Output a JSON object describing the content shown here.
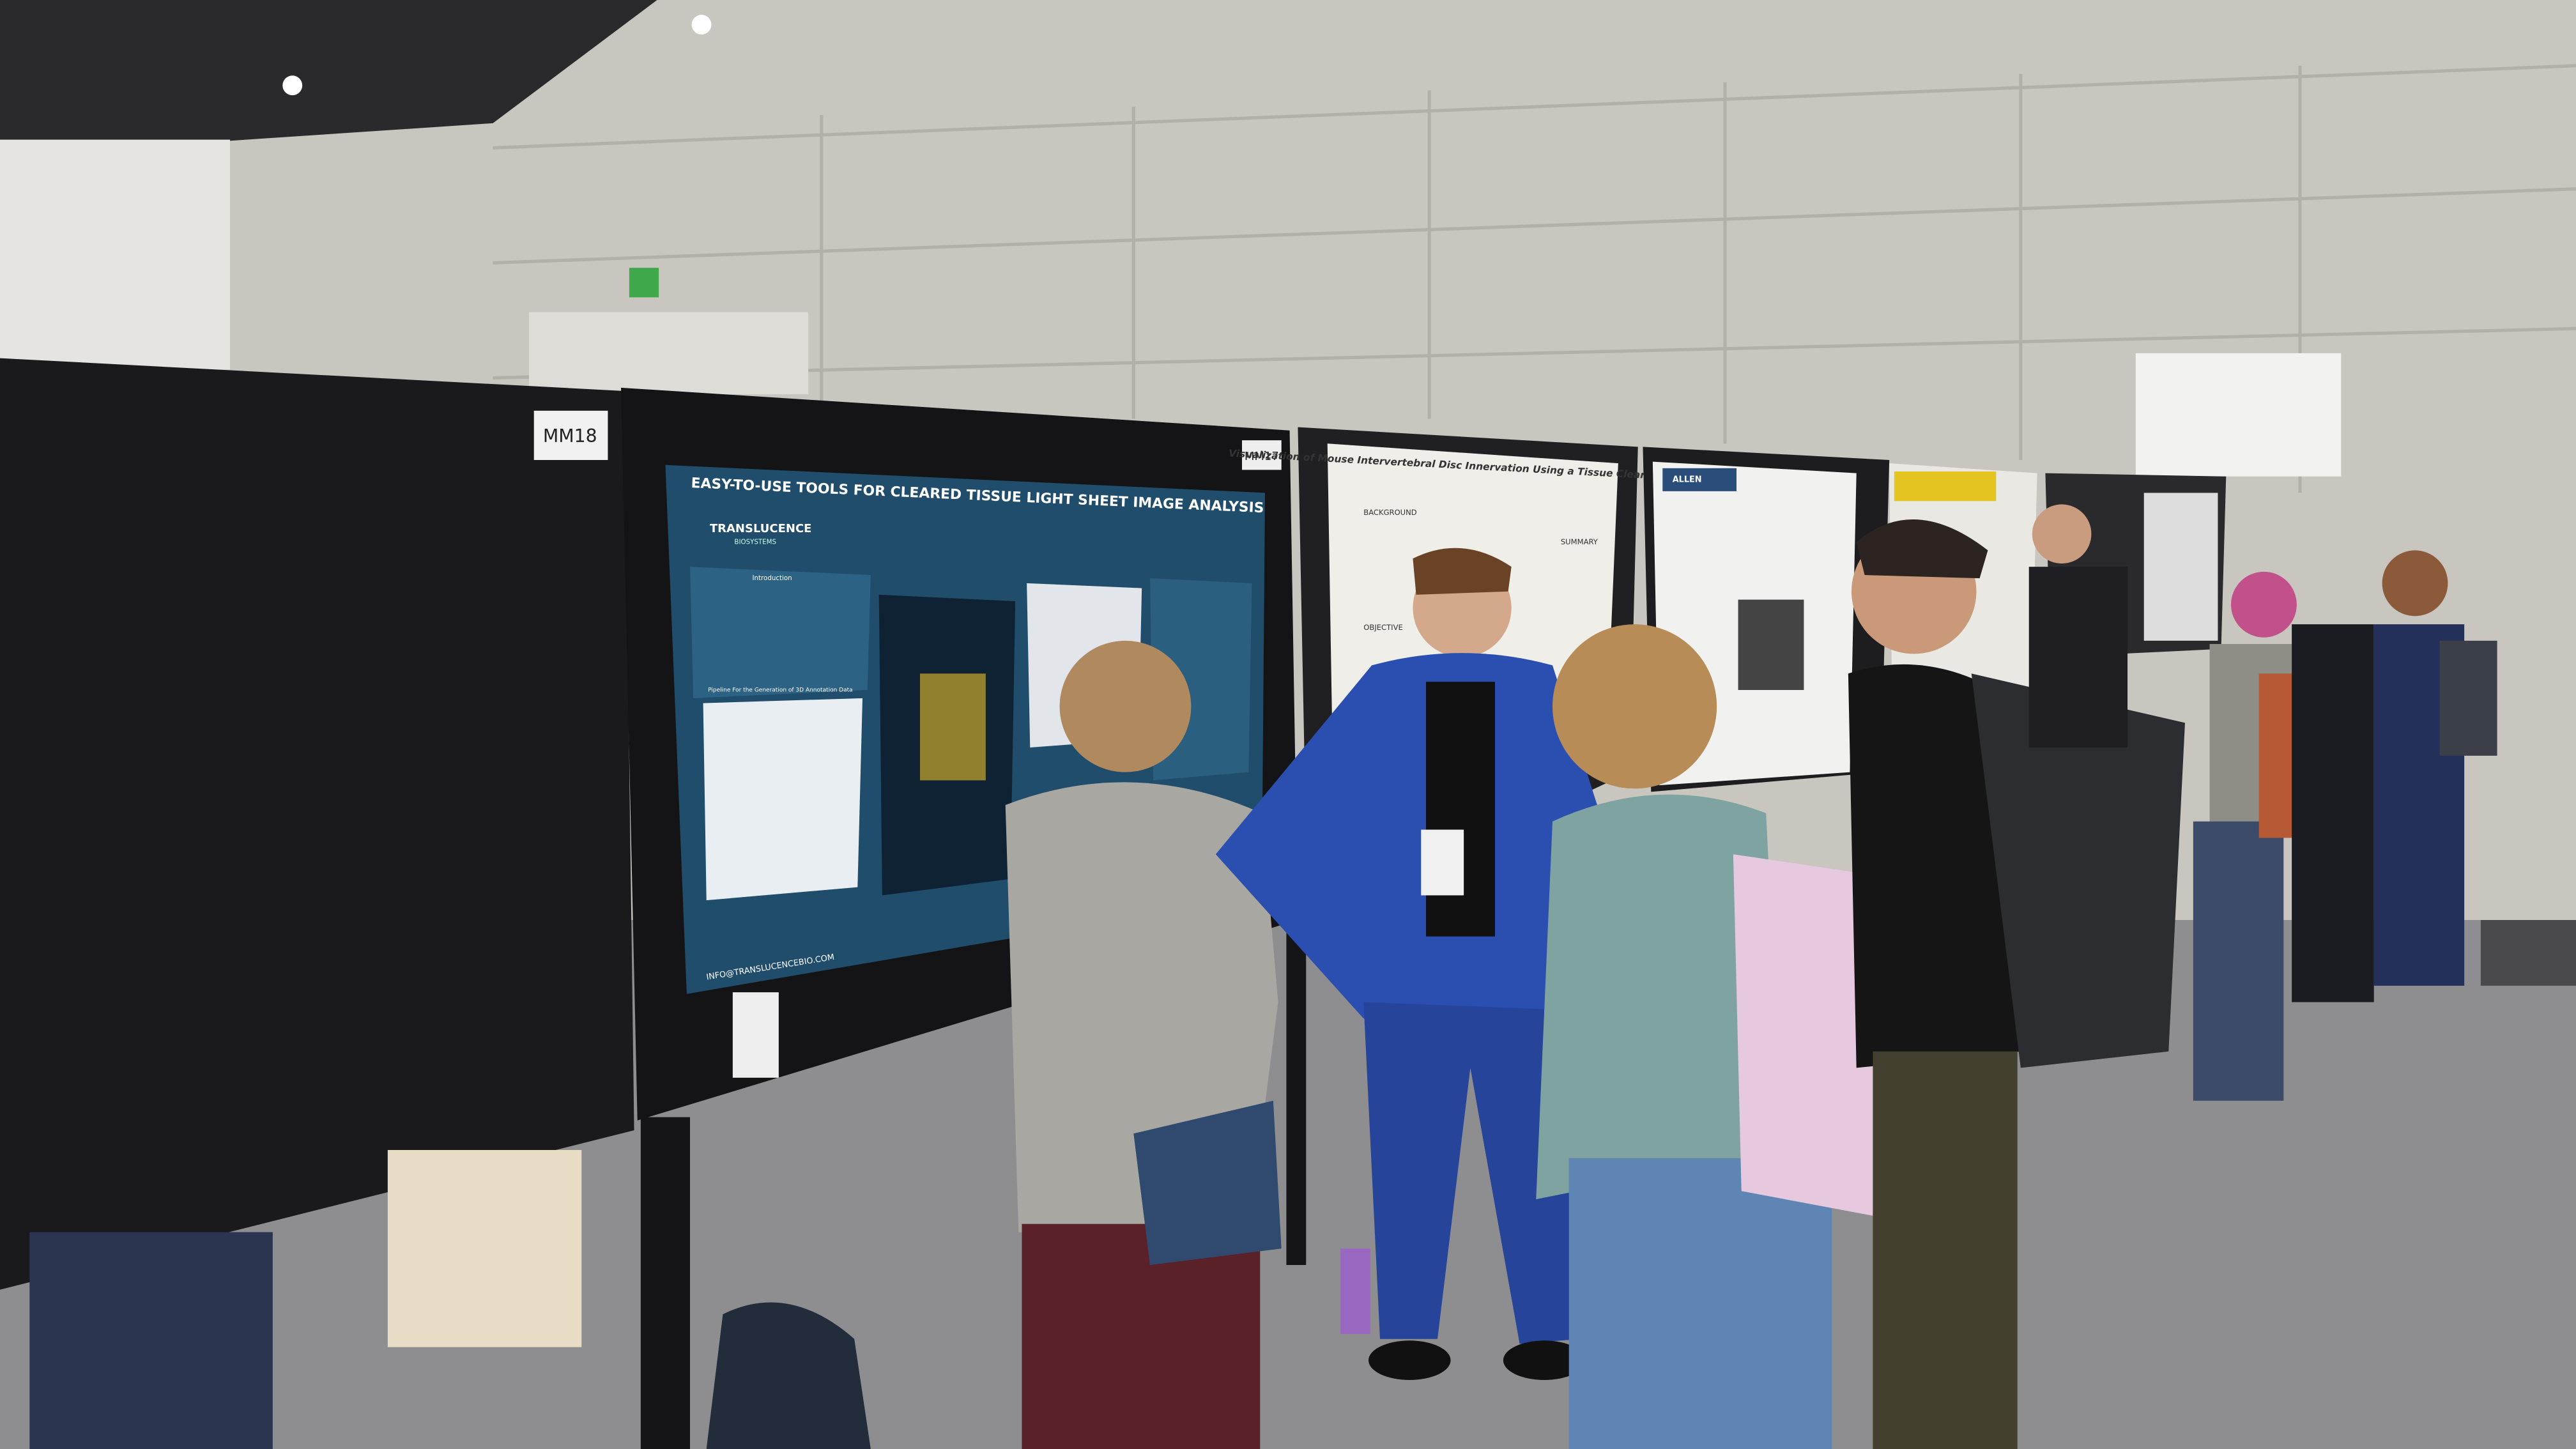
{
  "signs": {
    "board_left": "MM18",
    "board_right": "MM17"
  },
  "poster_left": {
    "title": "EASY-TO-USE TOOLS FOR CLEARED TISSUE LIGHT SHEET IMAGE ANALYSIS",
    "brand": "TRANSLUCENCE",
    "brand_sub": "BIOSYSTEMS",
    "sections": [
      "Introduction",
      "Pipeline For the Generation of 3D Annotation Data"
    ],
    "email": "INFO@TRANSLUCENCEBIO.COM"
  },
  "poster_middle": {
    "title": "Visualization of Mouse Intervertebral Disc Innervation Using a Tissue Clearing Technique",
    "sections": [
      "BACKGROUND",
      "OBJECTIVE",
      "SUMMARY"
    ]
  },
  "poster_right": {
    "brand": "ALLEN"
  }
}
